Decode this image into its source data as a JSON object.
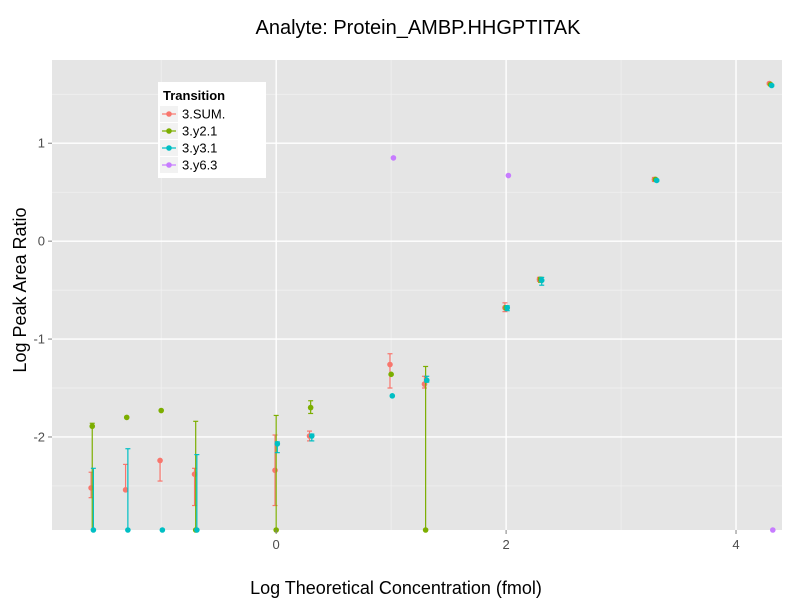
{
  "chart_data": {
    "type": "scatter",
    "title": "Analyte: Protein_AMBP.HHGPTITAK",
    "xlabel": "Log Theoretical Concentration (fmol)",
    "ylabel": "Log Peak Area Ratio",
    "xlim": [
      -1.95,
      4.4
    ],
    "ylim": [
      -2.95,
      1.85
    ],
    "x_ticks": [
      {
        "value": 0,
        "label": "0"
      },
      {
        "value": 2,
        "label": "2"
      },
      {
        "value": 4,
        "label": "4"
      }
    ],
    "y_ticks": [
      {
        "value": -2,
        "label": "-2"
      },
      {
        "value": -1,
        "label": "-1"
      },
      {
        "value": 0,
        "label": "0"
      },
      {
        "value": 1,
        "label": "1"
      }
    ],
    "grid": true,
    "background": "#e5e5e5",
    "legend": {
      "title": "Transition",
      "position": "top-left"
    },
    "series": [
      {
        "name": "3.SUM.",
        "color": "#f8766d",
        "points": [
          {
            "x": -1.61,
            "y": -2.52,
            "lo": -2.62,
            "hi": -2.36
          },
          {
            "x": -1.31,
            "y": -2.54,
            "lo": -2.54,
            "hi": -2.28
          },
          {
            "x": -1.01,
            "y": -2.24,
            "lo": -2.45,
            "hi": -2.24
          },
          {
            "x": -0.71,
            "y": -2.38,
            "lo": -2.7,
            "hi": -2.32
          },
          {
            "x": -0.01,
            "y": -2.34,
            "lo": -2.7,
            "hi": -1.98
          },
          {
            "x": 0.29,
            "y": -1.99,
            "lo": -2.04,
            "hi": -1.94
          },
          {
            "x": 0.99,
            "y": -1.26,
            "lo": -1.5,
            "hi": -1.15
          },
          {
            "x": 1.29,
            "y": -1.46,
            "lo": -1.5,
            "hi": -1.38
          },
          {
            "x": 1.99,
            "y": -0.68,
            "lo": -0.72,
            "hi": -0.63
          },
          {
            "x": 2.29,
            "y": -0.39,
            "lo": -0.41,
            "hi": -0.37
          },
          {
            "x": 3.29,
            "y": 0.63,
            "lo": 0.61,
            "hi": 0.65
          },
          {
            "x": 4.29,
            "y": 1.61,
            "lo": 1.6,
            "hi": 1.62
          }
        ]
      },
      {
        "name": "3.y2.1",
        "color": "#7cae00",
        "points": [
          {
            "x": -1.6,
            "y": -1.89,
            "lo": -2.95,
            "hi": -1.86
          },
          {
            "x": -1.3,
            "y": -1.8,
            "lo": -1.8,
            "hi": -1.8
          },
          {
            "x": -1.0,
            "y": -1.73,
            "lo": -1.73,
            "hi": -1.73
          },
          {
            "x": -0.7,
            "y": -2.95,
            "lo": -2.95,
            "hi": -1.84
          },
          {
            "x": 0.0,
            "y": -2.95,
            "lo": -2.95,
            "hi": -1.78
          },
          {
            "x": 0.3,
            "y": -1.7,
            "lo": -1.76,
            "hi": -1.63
          },
          {
            "x": 1.0,
            "y": -1.36,
            "lo": -1.36,
            "hi": -1.36
          },
          {
            "x": 1.3,
            "y": -2.95,
            "lo": -2.95,
            "hi": -1.28
          },
          {
            "x": 2.0,
            "y": -0.68,
            "lo": -0.7,
            "hi": -0.66
          },
          {
            "x": 2.3,
            "y": -0.39,
            "lo": -0.42,
            "hi": -0.37
          },
          {
            "x": 3.3,
            "y": 0.63,
            "lo": 0.62,
            "hi": 0.64
          },
          {
            "x": 4.3,
            "y": 1.6,
            "lo": 1.59,
            "hi": 1.61
          }
        ]
      },
      {
        "name": "3.y3.1",
        "color": "#00bfc4",
        "points": [
          {
            "x": -1.59,
            "y": -2.95,
            "lo": -2.95,
            "hi": -2.32
          },
          {
            "x": -1.29,
            "y": -2.95,
            "lo": -2.95,
            "hi": -2.12
          },
          {
            "x": -0.99,
            "y": -2.95,
            "lo": -2.95,
            "hi": -2.95
          },
          {
            "x": -0.69,
            "y": -2.95,
            "lo": -2.95,
            "hi": -2.18
          },
          {
            "x": 0.01,
            "y": -2.07,
            "lo": -2.16,
            "hi": -2.05
          },
          {
            "x": 0.31,
            "y": -1.99,
            "lo": -2.04,
            "hi": -1.97
          },
          {
            "x": 1.01,
            "y": -1.58,
            "lo": -1.58,
            "hi": -1.58
          },
          {
            "x": 1.31,
            "y": -1.42,
            "lo": -1.44,
            "hi": -1.38
          },
          {
            "x": 2.01,
            "y": -0.68,
            "lo": -0.71,
            "hi": -0.66
          },
          {
            "x": 2.31,
            "y": -0.4,
            "lo": -0.45,
            "hi": -0.37
          },
          {
            "x": 3.31,
            "y": 0.62,
            "lo": 0.61,
            "hi": 0.63
          },
          {
            "x": 4.31,
            "y": 1.59,
            "lo": 1.58,
            "hi": 1.6
          }
        ]
      },
      {
        "name": "3.y6.3",
        "color": "#c77cff",
        "points": [
          {
            "x": 1.02,
            "y": 0.85,
            "lo": 0.85,
            "hi": 0.85
          },
          {
            "x": 2.02,
            "y": 0.67,
            "lo": 0.67,
            "hi": 0.67
          },
          {
            "x": 4.32,
            "y": -2.95,
            "lo": -2.95,
            "hi": -2.95
          }
        ]
      }
    ]
  }
}
